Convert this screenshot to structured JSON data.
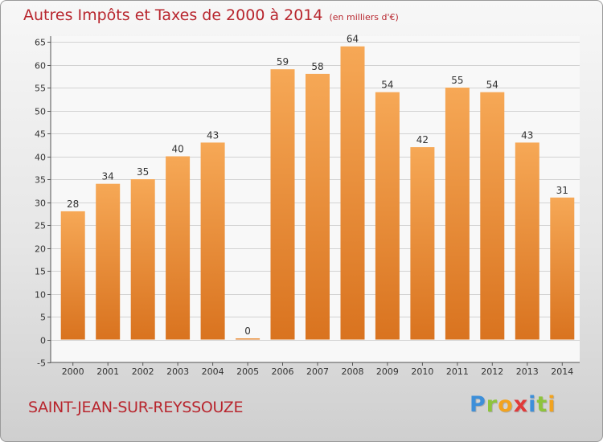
{
  "chart_title": "Autres Impôts et Taxes de 2000 à 2014",
  "chart_subtitle": "(en milliers d'€)",
  "commune_name": "SAINT-JEAN-SUR-REYSSOUZE",
  "logo_letters": [
    "P",
    "r",
    "o",
    "x",
    "i",
    "t",
    "i"
  ],
  "colors": {
    "bar_light": "#f6a856",
    "bar_dark": "#d9731f",
    "title": "#b8262e",
    "grid": "#d2d2d2"
  },
  "chart_data": {
    "type": "bar",
    "title": "Autres Impôts et Taxes de 2000 à 2014",
    "subtitle": "(en milliers d'€)",
    "categories": [
      "2000",
      "2001",
      "2002",
      "2003",
      "2004",
      "2005",
      "2006",
      "2007",
      "2008",
      "2009",
      "2010",
      "2011",
      "2012",
      "2013",
      "2014"
    ],
    "values": [
      28,
      34,
      35,
      40,
      43,
      0,
      59,
      58,
      64,
      54,
      42,
      55,
      54,
      43,
      31
    ],
    "ylim": [
      -5,
      65
    ],
    "yticks": [
      -5,
      0,
      5,
      10,
      15,
      20,
      25,
      30,
      35,
      40,
      45,
      50,
      55,
      60,
      65
    ],
    "grid": true,
    "data_labels": true
  }
}
